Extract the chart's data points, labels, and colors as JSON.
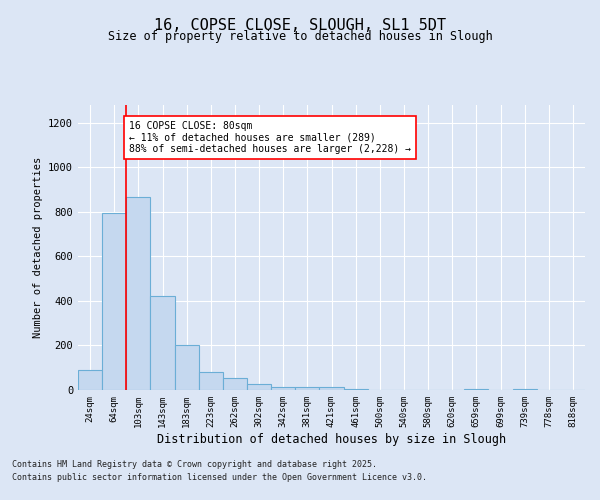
{
  "title1": "16, COPSE CLOSE, SLOUGH, SL1 5DT",
  "title2": "Size of property relative to detached houses in Slough",
  "xlabel": "Distribution of detached houses by size in Slough",
  "ylabel": "Number of detached properties",
  "categories": [
    "24sqm",
    "64sqm",
    "103sqm",
    "143sqm",
    "183sqm",
    "223sqm",
    "262sqm",
    "302sqm",
    "342sqm",
    "381sqm",
    "421sqm",
    "461sqm",
    "500sqm",
    "540sqm",
    "580sqm",
    "620sqm",
    "659sqm",
    "699sqm",
    "739sqm",
    "778sqm",
    "818sqm"
  ],
  "values": [
    90,
    795,
    868,
    420,
    200,
    80,
    55,
    25,
    12,
    12,
    12,
    5,
    0,
    0,
    0,
    0,
    5,
    0,
    5,
    0,
    0
  ],
  "bar_color": "#c5d8ef",
  "bar_edge_color": "#6baed6",
  "vline_x": 1.5,
  "vline_color": "red",
  "annotation_text": "16 COPSE CLOSE: 80sqm\n← 11% of detached houses are smaller (289)\n88% of semi-detached houses are larger (2,228) →",
  "annotation_box_color": "white",
  "annotation_box_edge": "red",
  "ylim": [
    0,
    1280
  ],
  "yticks": [
    0,
    200,
    400,
    600,
    800,
    1000,
    1200
  ],
  "footer1": "Contains HM Land Registry data © Crown copyright and database right 2025.",
  "footer2": "Contains public sector information licensed under the Open Government Licence v3.0.",
  "background_color": "#dce6f5",
  "plot_background": "#dce6f5",
  "grid_color": "#ffffff"
}
